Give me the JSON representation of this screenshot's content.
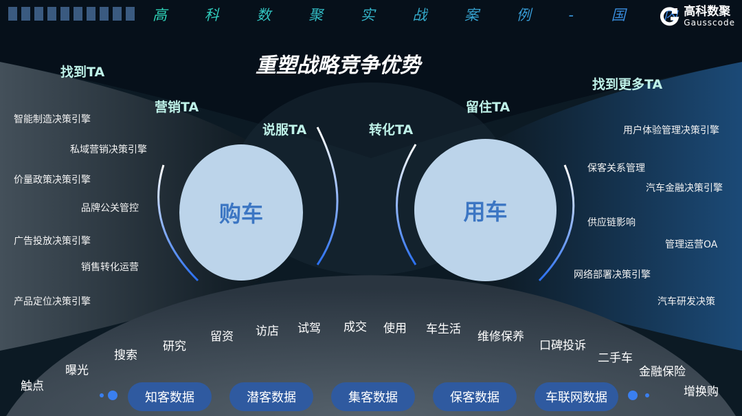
{
  "header": {
    "title": "高 科 数 聚 实 战 案 例 - 国 内",
    "logo_cn": "高科数聚",
    "logo_en": "Gausscode"
  },
  "main_title": "重塑战略竞争优势",
  "ta_labels": {
    "find": "找到TA",
    "market": "营销TA",
    "persuade": "说服TA",
    "convert": "转化TA",
    "retain": "留住TA",
    "find_more": "找到更多TA"
  },
  "circles": {
    "buy": "购车",
    "use": "用车"
  },
  "left_items": [
    "智能制造决策引擎",
    "私域营销决策引擎",
    "价量政策决策引擎",
    "品牌公关管控",
    "广告投放决策引擎",
    "销售转化运营",
    "产品定位决策引擎"
  ],
  "right_items": [
    "用户体验管理决策引擎",
    "保客关系管理",
    "汽车金融决策引擎",
    "供应链影响",
    "管理运营OA",
    "网络部署决策引擎",
    "汽车研发决策"
  ],
  "journey_steps": [
    "触点",
    "曝光",
    "搜索",
    "研究",
    "留资",
    "访店",
    "试驾",
    "成交",
    "使用",
    "车生活",
    "维修保养",
    "口碑投诉",
    "二手车",
    "金融保险",
    "增换购"
  ],
  "data_pills": [
    "知客数据",
    "潜客数据",
    "集客数据",
    "保客数据",
    "车联网数据"
  ],
  "colors": {
    "accent": "#3a7ff0",
    "circle": "#bcd4ea",
    "circle_text": "#3c76c3",
    "pill": "#2f5aa0",
    "ta_text": "#bff2e8"
  }
}
